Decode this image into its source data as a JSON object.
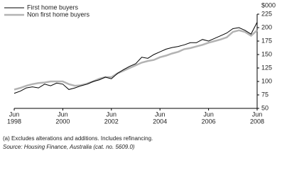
{
  "chart_data": {
    "type": "line",
    "y_unit": "$000",
    "x": [
      "Jun 1998",
      "Sep 1998",
      "Dec 1998",
      "Mar 1999",
      "Jun 1999",
      "Sep 1999",
      "Dec 1999",
      "Mar 2000",
      "Jun 2000",
      "Sep 2000",
      "Dec 2000",
      "Mar 2001",
      "Jun 2001",
      "Sep 2001",
      "Dec 2001",
      "Mar 2002",
      "Jun 2002",
      "Sep 2002",
      "Dec 2002",
      "Mar 2003",
      "Jun 2003",
      "Sep 2003",
      "Dec 2003",
      "Mar 2004",
      "Jun 2004",
      "Sep 2004",
      "Dec 2004",
      "Mar 2005",
      "Jun 2005",
      "Sep 2005",
      "Dec 2005",
      "Mar 2006",
      "Jun 2006",
      "Sep 2006",
      "Dec 2006",
      "Mar 2007",
      "Jun 2007",
      "Sep 2007",
      "Dec 2007",
      "Mar 2008",
      "Jun 2008"
    ],
    "series": [
      {
        "name": "First home buyers",
        "color": "#000000",
        "width": 1,
        "values": [
          78,
          82,
          88,
          90,
          88,
          95,
          92,
          97,
          95,
          85,
          88,
          92,
          95,
          100,
          103,
          108,
          105,
          115,
          122,
          128,
          133,
          145,
          143,
          150,
          155,
          160,
          163,
          165,
          168,
          172,
          172,
          178,
          175,
          180,
          185,
          190,
          198,
          200,
          195,
          188,
          210
        ]
      },
      {
        "name": "Non first home buyers",
        "color": "#b3b3b3",
        "width": 2.5,
        "values": [
          85,
          88,
          92,
          95,
          97,
          98,
          100,
          100,
          100,
          95,
          92,
          93,
          96,
          100,
          105,
          108,
          108,
          115,
          120,
          125,
          130,
          135,
          138,
          140,
          145,
          148,
          152,
          155,
          160,
          162,
          165,
          168,
          172,
          175,
          178,
          182,
          192,
          195,
          192,
          185,
          195
        ]
      }
    ],
    "ylim": [
      50,
      225
    ],
    "yticks": [
      50,
      75,
      100,
      125,
      150,
      175,
      200,
      225
    ],
    "xticks": [
      {
        "month": "Jun",
        "year": "1998"
      },
      {
        "month": "Jun",
        "year": "2000"
      },
      {
        "month": "Jun",
        "year": "2002"
      },
      {
        "month": "Jun",
        "year": "2004"
      },
      {
        "month": "Jun",
        "year": "2006"
      },
      {
        "month": "Jun",
        "year": "2008"
      }
    ],
    "footnotes": [
      "(a) Excludes alterations and additions. Includes refinancing.",
      "Source: Housing Finance, Australia (cat. no. 5609.0)"
    ]
  }
}
